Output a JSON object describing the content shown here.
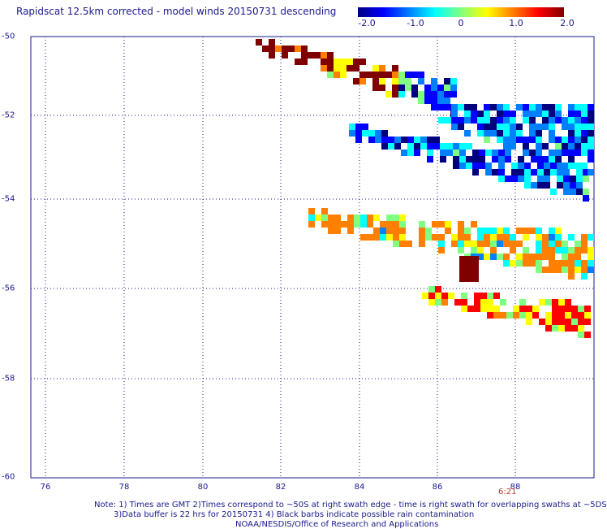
{
  "header": {
    "title": "Rapidscat 12.5km corrected - model winds 20150731 descending"
  },
  "colorbar": {
    "labels": [
      "-2.0",
      "-1.0",
      "0",
      "1.0",
      "2.0"
    ],
    "colors": [
      "#00007f",
      "#0000ff",
      "#0080ff",
      "#00ffff",
      "#80ff80",
      "#ffff00",
      "#ff8000",
      "#ff0000",
      "#7f0000"
    ]
  },
  "axes": {
    "y_labels": [
      "-50",
      "-52",
      "-54",
      "-56",
      "-58",
      "-60"
    ],
    "x_labels": [
      "76",
      "78",
      "80",
      "82",
      "84",
      "86",
      "88"
    ],
    "x_range": [
      75,
      90
    ],
    "y_range": [
      -60,
      -50
    ],
    "grid": true
  },
  "time_label": "6:21",
  "notes": {
    "line1": "Note: 1) Times are GMT 2)Times correspond to ~50S at right swath edge - time is right swath for overlapping swaths at ~5DS",
    "line2": "3)Data buffer is 22 hrs for 20150731 4) Black barbs indicate possible rain contamination",
    "line3": "NOAA/NESDIS/Office of Research and Applications"
  }
}
